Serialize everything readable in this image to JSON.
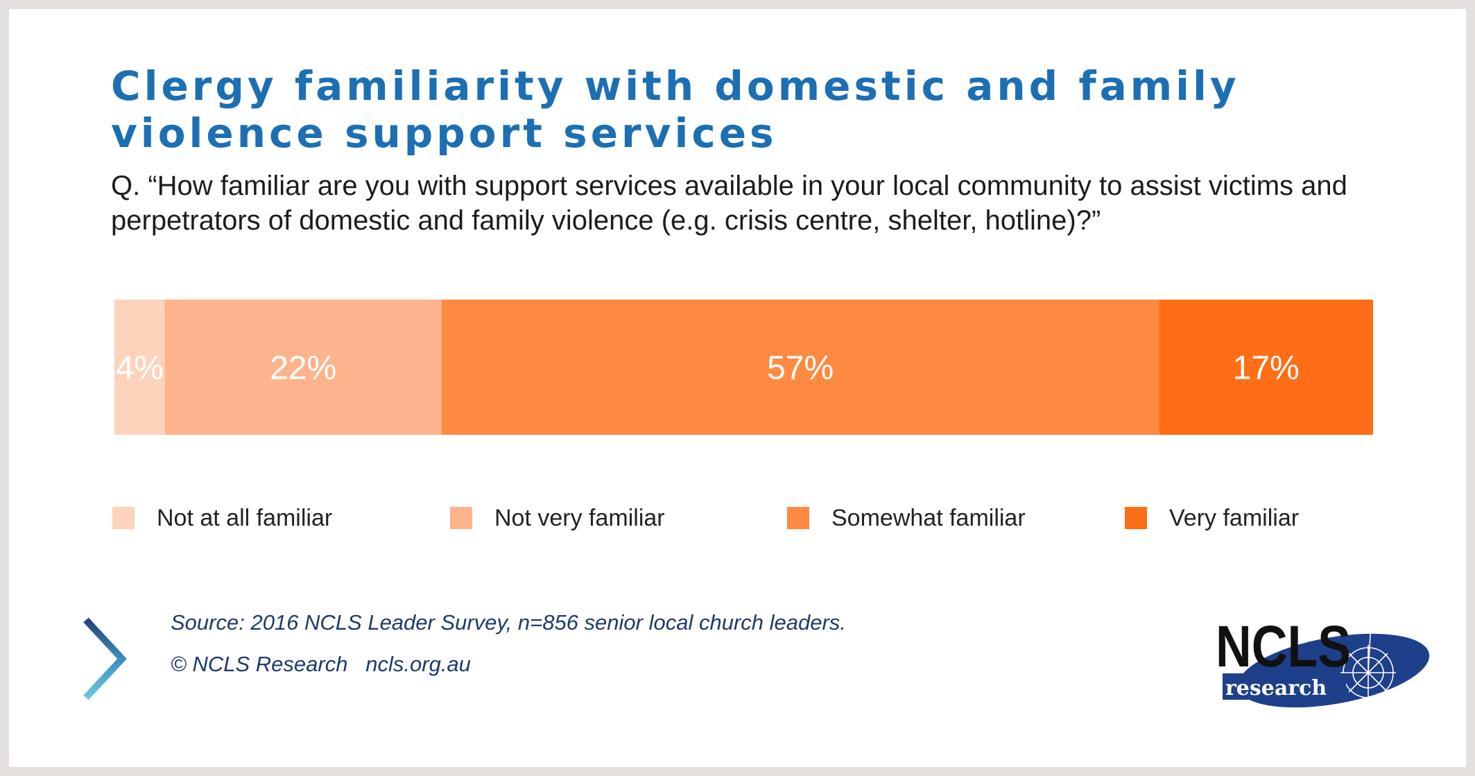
{
  "title": "Clergy familiarity with domestic and family violence support services",
  "question": "Q. “How familiar are you with support services available in your local community to assist victims and perpetrators of domestic and family violence (e.g. crisis centre, shelter, hotline)?”",
  "chart_data": {
    "type": "bar",
    "orientation": "horizontal-stacked-100",
    "categories": [
      "Not at all familiar",
      "Not very familiar",
      "Somewhat familiar",
      "Very familiar"
    ],
    "values": [
      4,
      22,
      57,
      17
    ],
    "data_labels": [
      "4%",
      "22%",
      "57%",
      "17%"
    ],
    "colors": [
      "#fdd3bb",
      "#fdb48c",
      "#fe8a41",
      "#fe6e17"
    ],
    "legend_position": "bottom",
    "grid": false
  },
  "source": "Source: 2016 NCLS Leader Survey, n=856 senior local church leaders.",
  "credit": "© NCLS Research   ncls.org.au",
  "logo": {
    "wordmark": "NCLS",
    "subtext": "research",
    "color": "#1e3f8a"
  },
  "accent_icon": "chevron-right-icon"
}
